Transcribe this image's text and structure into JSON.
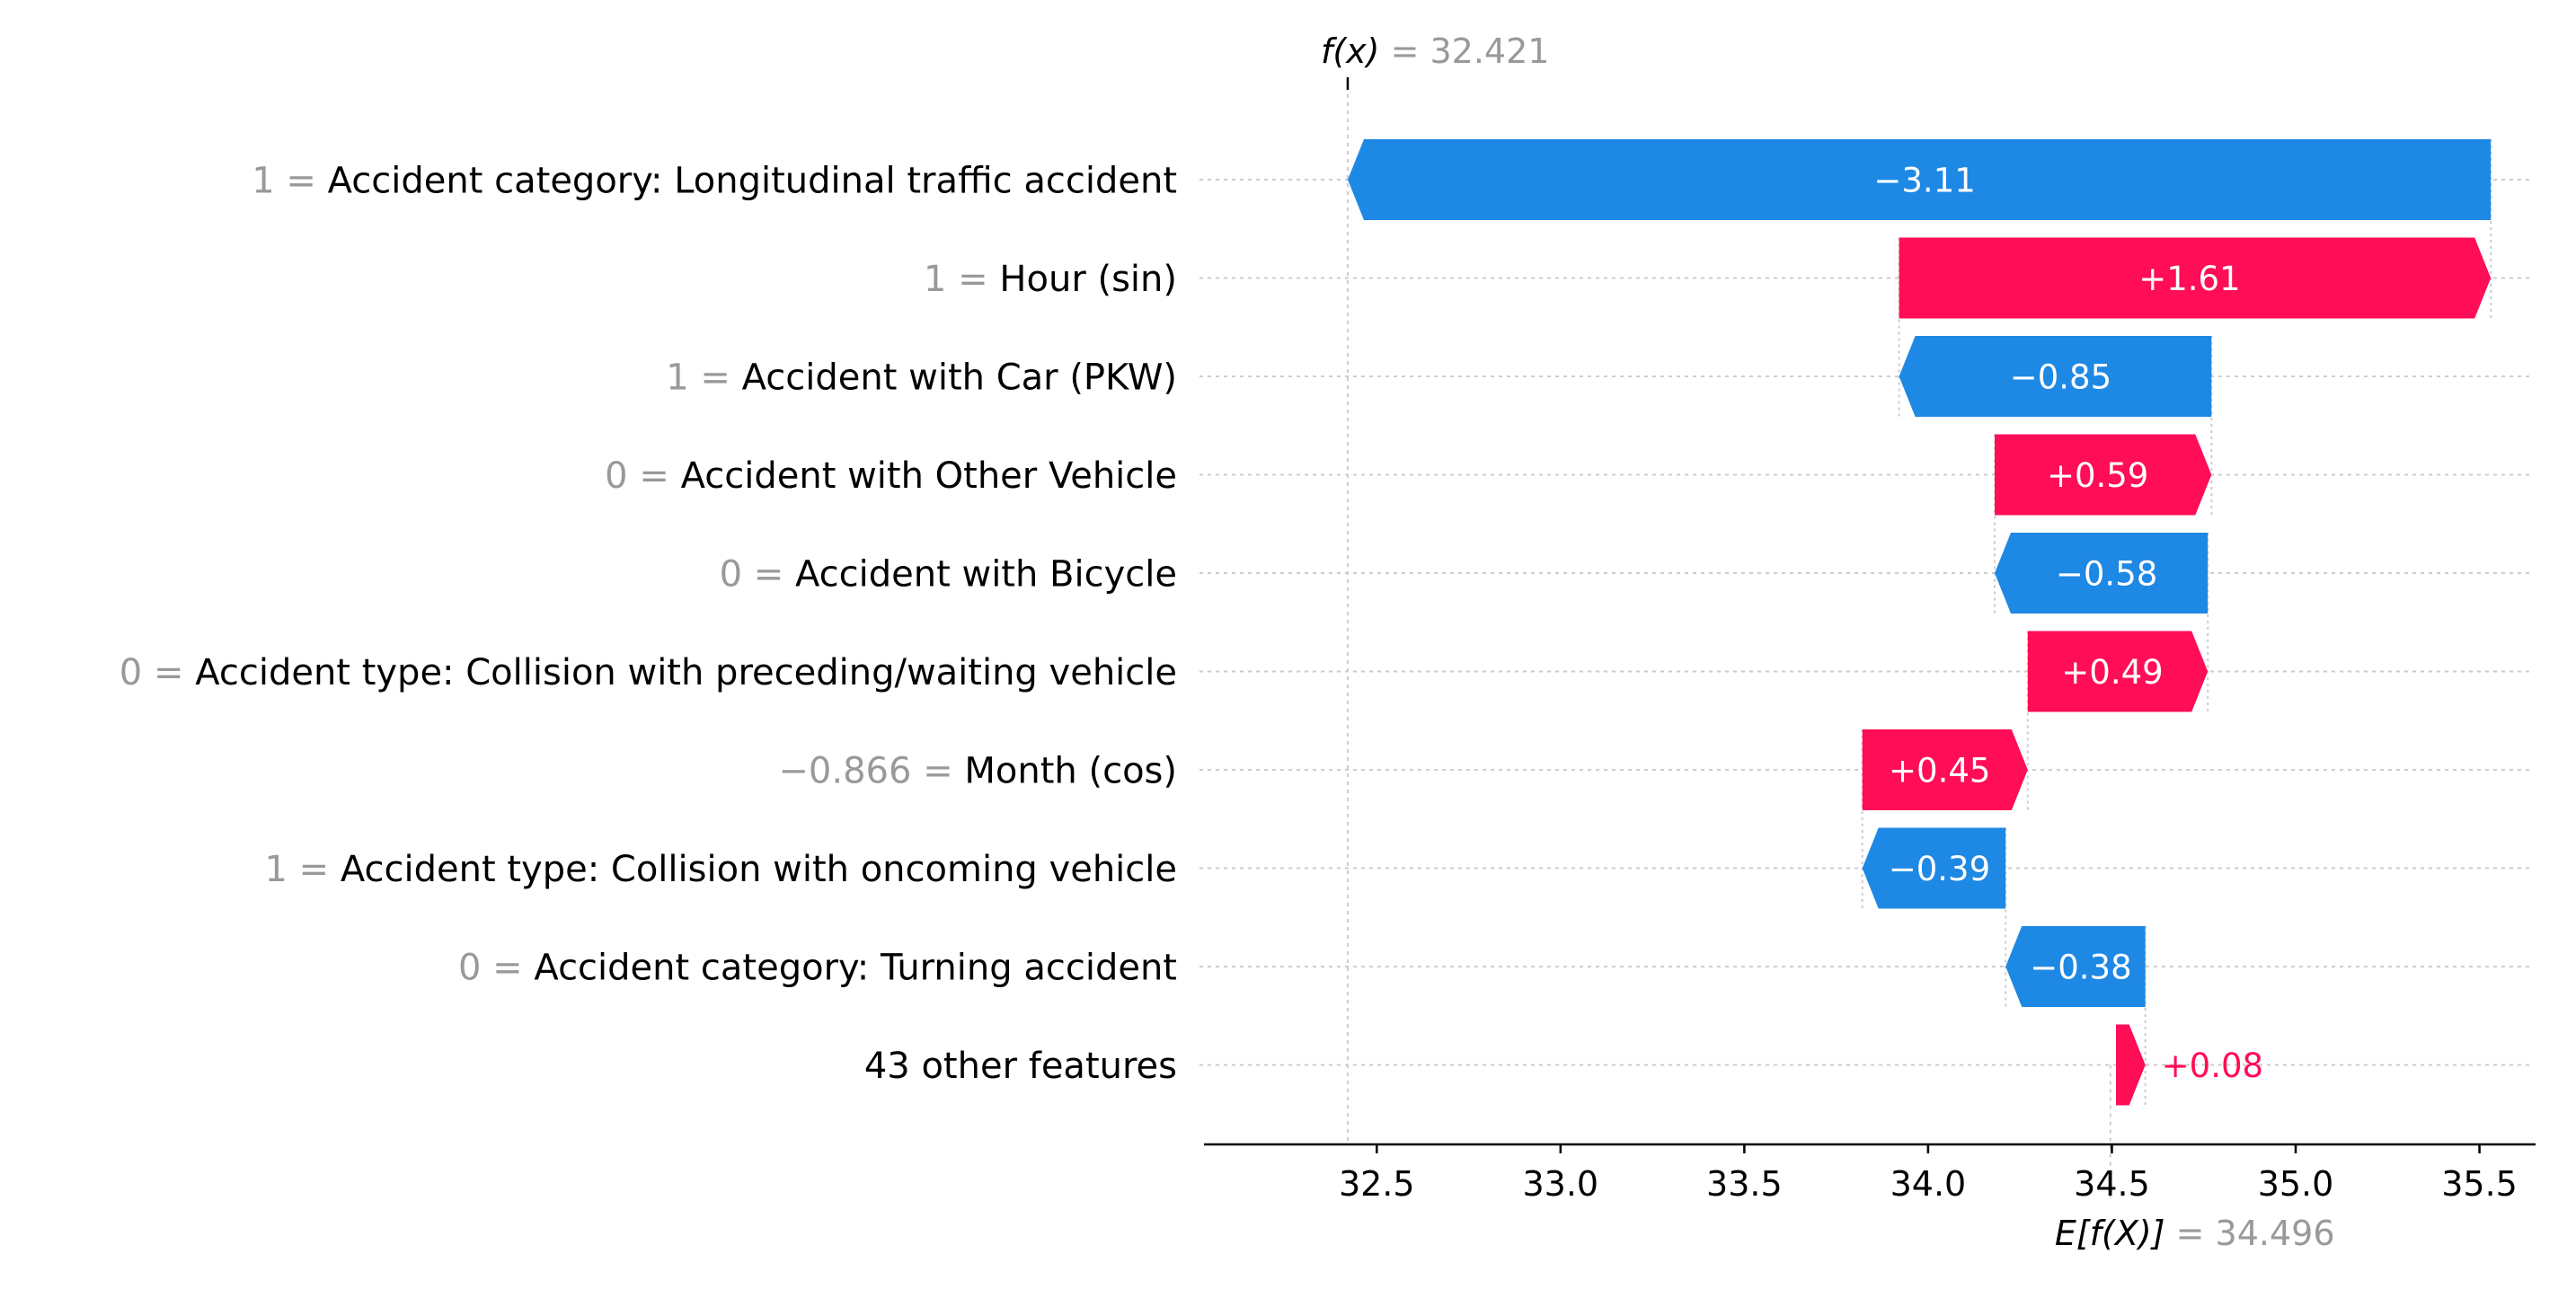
{
  "chart_data": {
    "type": "waterfall",
    "title": "",
    "fx": {
      "label_prefix": "f(x)",
      "eq": " = ",
      "value_text": "32.421",
      "value": 32.421
    },
    "efx": {
      "label_prefix": "E[f(X)]",
      "eq": " = ",
      "value_text": "34.496",
      "value": 34.496
    },
    "xlim": [
      32.25,
      35.55
    ],
    "xticks": [
      {
        "value": 32.5,
        "label": "32.5"
      },
      {
        "value": 33.0,
        "label": "33.0"
      },
      {
        "value": 33.5,
        "label": "33.5"
      },
      {
        "value": 34.0,
        "label": "34.0"
      },
      {
        "value": 34.5,
        "label": "34.5"
      },
      {
        "value": 35.0,
        "label": "35.0"
      },
      {
        "value": 35.5,
        "label": "35.5"
      }
    ],
    "features": [
      {
        "value": "1",
        "eq": " = ",
        "name": "Accident category: Longitudinal traffic accident",
        "contribution": -3.11,
        "label": "−3.11"
      },
      {
        "value": "1",
        "eq": " = ",
        "name": "Hour (sin)",
        "contribution": 1.61,
        "label": "+1.61"
      },
      {
        "value": "1",
        "eq": " = ",
        "name": "Accident with Car (PKW)",
        "contribution": -0.85,
        "label": "−0.85"
      },
      {
        "value": "0",
        "eq": " = ",
        "name": "Accident with Other Vehicle",
        "contribution": 0.59,
        "label": "+0.59"
      },
      {
        "value": "0",
        "eq": " = ",
        "name": "Accident with Bicycle",
        "contribution": -0.58,
        "label": "−0.58"
      },
      {
        "value": "0",
        "eq": " = ",
        "name": "Accident type: Collision with preceding/waiting vehicle",
        "contribution": 0.49,
        "label": "+0.49"
      },
      {
        "value": "−0.866",
        "eq": " = ",
        "name": "Month (cos)",
        "contribution": 0.45,
        "label": "+0.45"
      },
      {
        "value": "1",
        "eq": " = ",
        "name": "Accident type: Collision with oncoming vehicle",
        "contribution": -0.39,
        "label": "−0.39"
      },
      {
        "value": "0",
        "eq": " = ",
        "name": "Accident category: Turning accident",
        "contribution": -0.38,
        "label": "−0.38"
      },
      {
        "value": "",
        "eq": "",
        "name": "43 other features",
        "contribution": 0.08,
        "label": "+0.08"
      }
    ],
    "colors": {
      "positive": "#ff0d57",
      "negative": "#1e88e5",
      "grid": "#cccccc",
      "muted": "#999999",
      "text": "#000000"
    }
  }
}
